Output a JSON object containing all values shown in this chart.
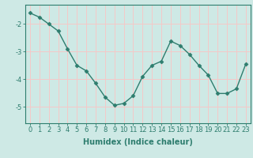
{
  "x": [
    0,
    1,
    2,
    3,
    4,
    5,
    6,
    7,
    8,
    9,
    10,
    11,
    12,
    13,
    14,
    15,
    16,
    17,
    18,
    19,
    20,
    21,
    22,
    23
  ],
  "y": [
    -1.6,
    -1.75,
    -2.0,
    -2.25,
    -2.9,
    -3.5,
    -3.7,
    -4.15,
    -4.65,
    -4.95,
    -4.88,
    -4.6,
    -3.9,
    -3.5,
    -3.35,
    -2.62,
    -2.78,
    -3.1,
    -3.5,
    -3.85,
    -4.52,
    -4.52,
    -4.35,
    -3.45
  ],
  "line_color": "#2e7d6e",
  "marker": "D",
  "marker_size": 2.5,
  "bg_color": "#cee9e5",
  "grid_color": "#f5c8c8",
  "axis_color": "#2e7d6e",
  "xlabel": "Humidex (Indice chaleur)",
  "ylim": [
    -5.6,
    -1.3
  ],
  "xlim": [
    -0.5,
    23.5
  ],
  "yticks": [
    -5,
    -4,
    -3,
    -2
  ],
  "xticks": [
    0,
    1,
    2,
    3,
    4,
    5,
    6,
    7,
    8,
    9,
    10,
    11,
    12,
    13,
    14,
    15,
    16,
    17,
    18,
    19,
    20,
    21,
    22,
    23
  ],
  "xlabel_fontsize": 7.0,
  "tick_fontsize": 6.0,
  "line_width": 1.0
}
